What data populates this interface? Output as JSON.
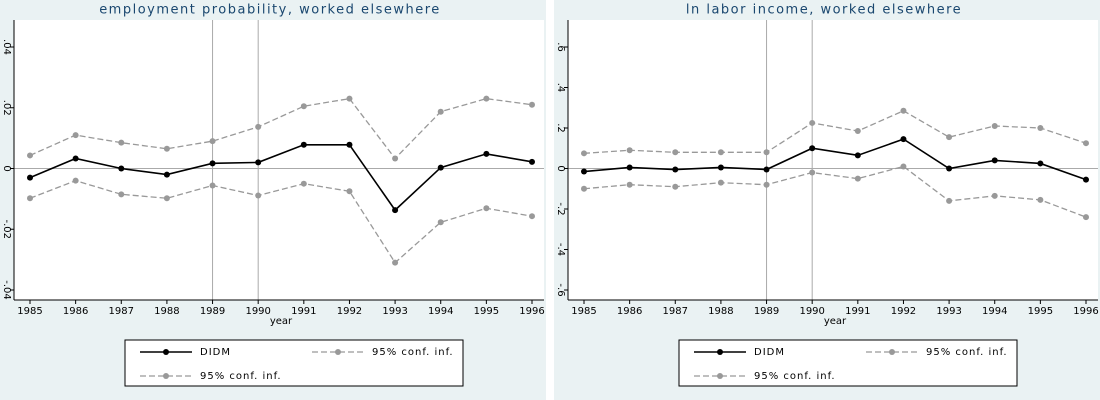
{
  "chart_data": [
    {
      "type": "line",
      "title": "employment probability, worked elsewhere",
      "xlabel": "year",
      "x": [
        1985,
        1986,
        1987,
        1988,
        1989,
        1990,
        1991,
        1992,
        1993,
        1994,
        1995,
        1996
      ],
      "xlim": [
        1985,
        1996
      ],
      "xticks": [
        1985,
        1986,
        1987,
        1988,
        1989,
        1990,
        1991,
        1992,
        1993,
        1994,
        1995,
        1996
      ],
      "ylim": [
        -0.04,
        0.04
      ],
      "yticks": [
        {
          "value": -0.04,
          "label": "-.04"
        },
        {
          "value": -0.02,
          "label": "-.02"
        },
        0,
        {
          "value": 0.02,
          "label": ".02"
        },
        {
          "value": 0.04,
          "label": ".04"
        }
      ],
      "xlines": [
        1989,
        1990
      ],
      "ylines": [
        0
      ],
      "series": [
        {
          "name": "DIDM",
          "color": "#000000",
          "dashed": false,
          "values": [
            -0.003,
            0.0033,
            0,
            -0.002,
            0.0017,
            0.002,
            0.0078,
            0.0078,
            -0.0137,
            0.0003,
            0.0048,
            0.0022
          ]
        },
        {
          "name": "95% conf. inf.",
          "color": "#999999",
          "dashed": true,
          "values": [
            0.0043,
            0.011,
            0.0085,
            0.0065,
            0.009,
            0.0137,
            0.0205,
            0.023,
            0.0033,
            0.0187,
            0.023,
            0.021
          ]
        },
        {
          "name": "95% conf. inf.",
          "color": "#999999",
          "dashed": true,
          "values": [
            -0.0098,
            -0.004,
            -0.0085,
            -0.0098,
            -0.0056,
            -0.0089,
            -0.005,
            -0.0075,
            -0.031,
            -0.0177,
            -0.0131,
            -0.0157
          ]
        }
      ]
    },
    {
      "type": "line",
      "title": "ln labor income, worked elsewhere",
      "xlabel": "year",
      "x": [
        1985,
        1986,
        1987,
        1988,
        1989,
        1990,
        1991,
        1992,
        1993,
        1994,
        1995,
        1996
      ],
      "xlim": [
        1985,
        1996
      ],
      "xticks": [
        1985,
        1986,
        1987,
        1988,
        1989,
        1990,
        1991,
        1992,
        1993,
        1994,
        1995,
        1996
      ],
      "ylim": [
        -0.6,
        0.6
      ],
      "yticks": [
        {
          "value": -0.6,
          "label": "-.6"
        },
        {
          "value": -0.4,
          "label": "-.4"
        },
        {
          "value": -0.2,
          "label": "-.2"
        },
        0,
        {
          "value": 0.2,
          "label": ".2"
        },
        {
          "value": 0.4,
          "label": ".4"
        },
        {
          "value": 0.6,
          "label": ".6"
        }
      ],
      "xlines": [
        1989,
        1990
      ],
      "ylines": [
        0
      ],
      "series": [
        {
          "name": "DIDM",
          "color": "#000000",
          "dashed": false,
          "values": [
            -0.015,
            0.005,
            -0.005,
            0.005,
            -0.005,
            0.1,
            0.065,
            0.145,
            0,
            0.04,
            0.025,
            -0.055
          ]
        },
        {
          "name": "95% conf. inf.",
          "color": "#999999",
          "dashed": true,
          "values": [
            0.075,
            0.09,
            0.08,
            0.08,
            0.08,
            0.225,
            0.185,
            0.285,
            0.155,
            0.21,
            0.2,
            0.125
          ]
        },
        {
          "name": "95% conf. inf.",
          "color": "#999999",
          "dashed": true,
          "values": [
            -0.1,
            -0.08,
            -0.09,
            -0.07,
            -0.08,
            -0.02,
            -0.05,
            0.01,
            -0.16,
            -0.135,
            -0.155,
            -0.24
          ]
        }
      ]
    }
  ]
}
